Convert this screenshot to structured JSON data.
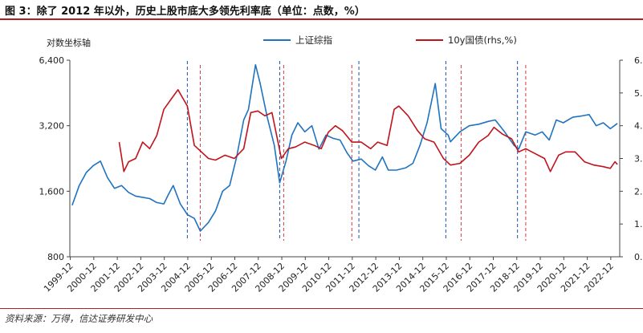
{
  "title": "图 3：除了 2012 年以外，历史上股市底大多领先利率底（单位：点数，%）",
  "source": "资料来源：万得，信达证券研发中心",
  "chart_data": {
    "type": "line",
    "ylabel_left": "对数坐标轴",
    "left_axis": {
      "scale": "log",
      "range": [
        800,
        6400
      ],
      "ticks": [
        800,
        1600,
        3200,
        6400
      ],
      "tick_labels": [
        "800",
        "1,600",
        "3,200",
        "6,400"
      ]
    },
    "right_axis": {
      "range": [
        0.0,
        6.0
      ],
      "ticks": [
        0,
        1,
        2,
        3,
        4,
        5,
        6
      ],
      "tick_labels": [
        "0.",
        "1.",
        "2.",
        "3.",
        "4.",
        "5.",
        "6."
      ]
    },
    "x_ticks": [
      "1999-12",
      "2000-12",
      "2001-12",
      "2002-12",
      "2003-12",
      "2004-12",
      "2005-12",
      "2006-12",
      "2007-12",
      "2008-12",
      "2009-12",
      "2010-12",
      "2011-12",
      "2012-12",
      "2013-12",
      "2014-12",
      "2015-12",
      "2016-12",
      "2017-12",
      "2018-12",
      "2019-12",
      "2020-12",
      "2021-12",
      "2022-12"
    ],
    "x_range": [
      1999.9,
      2023.3
    ],
    "legend_position": "top-center",
    "series": [
      {
        "name": "上证综指",
        "axis": "left",
        "color": "#1f73c0",
        "x": [
          2000.0,
          2000.3,
          2000.6,
          2000.9,
          2001.2,
          2001.5,
          2001.8,
          2002.1,
          2002.4,
          2002.7,
          2003.0,
          2003.3,
          2003.6,
          2003.9,
          2004.1,
          2004.3,
          2004.6,
          2004.9,
          2005.2,
          2005.45,
          2005.8,
          2006.1,
          2006.4,
          2006.7,
          2007.0,
          2007.3,
          2007.5,
          2007.8,
          2008.0,
          2008.3,
          2008.6,
          2008.83,
          2009.1,
          2009.35,
          2009.6,
          2009.9,
          2010.2,
          2010.5,
          2010.8,
          2011.1,
          2011.4,
          2011.7,
          2011.95,
          2012.3,
          2012.6,
          2012.9,
          2013.2,
          2013.45,
          2013.8,
          2014.2,
          2014.5,
          2014.8,
          2015.1,
          2015.45,
          2015.7,
          2016.0,
          2016.1,
          2016.5,
          2016.9,
          2017.3,
          2017.7,
          2018.0,
          2018.4,
          2018.8,
          2019.0,
          2019.3,
          2019.7,
          2020.0,
          2020.3,
          2020.6,
          2020.9,
          2021.3,
          2021.7,
          2022.0,
          2022.3,
          2022.6,
          2022.9,
          2023.2
        ],
        "y": [
          1380,
          1700,
          1950,
          2100,
          2200,
          1850,
          1650,
          1700,
          1580,
          1520,
          1500,
          1480,
          1420,
          1400,
          1550,
          1700,
          1400,
          1250,
          1200,
          1050,
          1150,
          1300,
          1600,
          1700,
          2300,
          3400,
          3800,
          6100,
          5000,
          3500,
          2600,
          1750,
          2200,
          2900,
          3300,
          3000,
          3200,
          2500,
          2900,
          2800,
          2750,
          2400,
          2200,
          2250,
          2100,
          2000,
          2300,
          2000,
          2000,
          2050,
          2150,
          2600,
          3300,
          5000,
          3100,
          2900,
          2700,
          3000,
          3200,
          3250,
          3350,
          3400,
          3000,
          2600,
          2500,
          3000,
          2900,
          3000,
          2750,
          3400,
          3300,
          3500,
          3550,
          3600,
          3200,
          3300,
          3100,
          3280
        ]
      },
      {
        "name": "10y国债(rhs,%)",
        "axis": "right",
        "color": "#c0141c",
        "x": [
          2002.0,
          2002.2,
          2002.4,
          2002.7,
          2003.0,
          2003.3,
          2003.6,
          2003.9,
          2004.2,
          2004.5,
          2004.9,
          2005.2,
          2005.5,
          2005.8,
          2006.1,
          2006.5,
          2006.9,
          2007.3,
          2007.6,
          2007.9,
          2008.2,
          2008.5,
          2008.9,
          2009.2,
          2009.5,
          2009.9,
          2010.3,
          2010.6,
          2010.9,
          2011.2,
          2011.5,
          2011.9,
          2012.3,
          2012.7,
          2013.0,
          2013.4,
          2013.7,
          2013.9,
          2014.3,
          2014.7,
          2015.0,
          2015.4,
          2015.8,
          2016.1,
          2016.5,
          2016.9,
          2017.3,
          2017.7,
          2017.95,
          2018.3,
          2018.7,
          2019.0,
          2019.3,
          2019.7,
          2020.1,
          2020.35,
          2020.7,
          2021.0,
          2021.4,
          2021.8,
          2022.2,
          2022.6,
          2022.9,
          2023.1,
          2023.2
        ],
        "y": [
          3.5,
          2.6,
          2.9,
          3.0,
          3.5,
          3.3,
          3.7,
          4.5,
          4.8,
          5.1,
          4.6,
          3.4,
          3.2,
          3.0,
          2.95,
          3.1,
          3.0,
          3.3,
          4.4,
          4.45,
          4.3,
          4.4,
          3.0,
          3.3,
          3.35,
          3.5,
          3.4,
          3.3,
          3.8,
          4.0,
          3.85,
          3.5,
          3.5,
          3.3,
          3.5,
          3.4,
          4.5,
          4.6,
          4.3,
          3.85,
          3.6,
          3.5,
          3.0,
          2.8,
          2.85,
          3.1,
          3.5,
          3.7,
          3.95,
          3.75,
          3.6,
          3.2,
          3.3,
          3.15,
          3.0,
          2.6,
          3.1,
          3.2,
          3.2,
          2.9,
          2.8,
          2.75,
          2.7,
          2.9,
          2.82
        ]
      }
    ],
    "vlines_blue": [
      2004.9,
      2008.83,
      2012.2,
      2015.9,
      2018.95
    ],
    "vlines_red": [
      2005.45,
      2009.0,
      2011.9,
      2016.55,
      2019.3
    ]
  }
}
